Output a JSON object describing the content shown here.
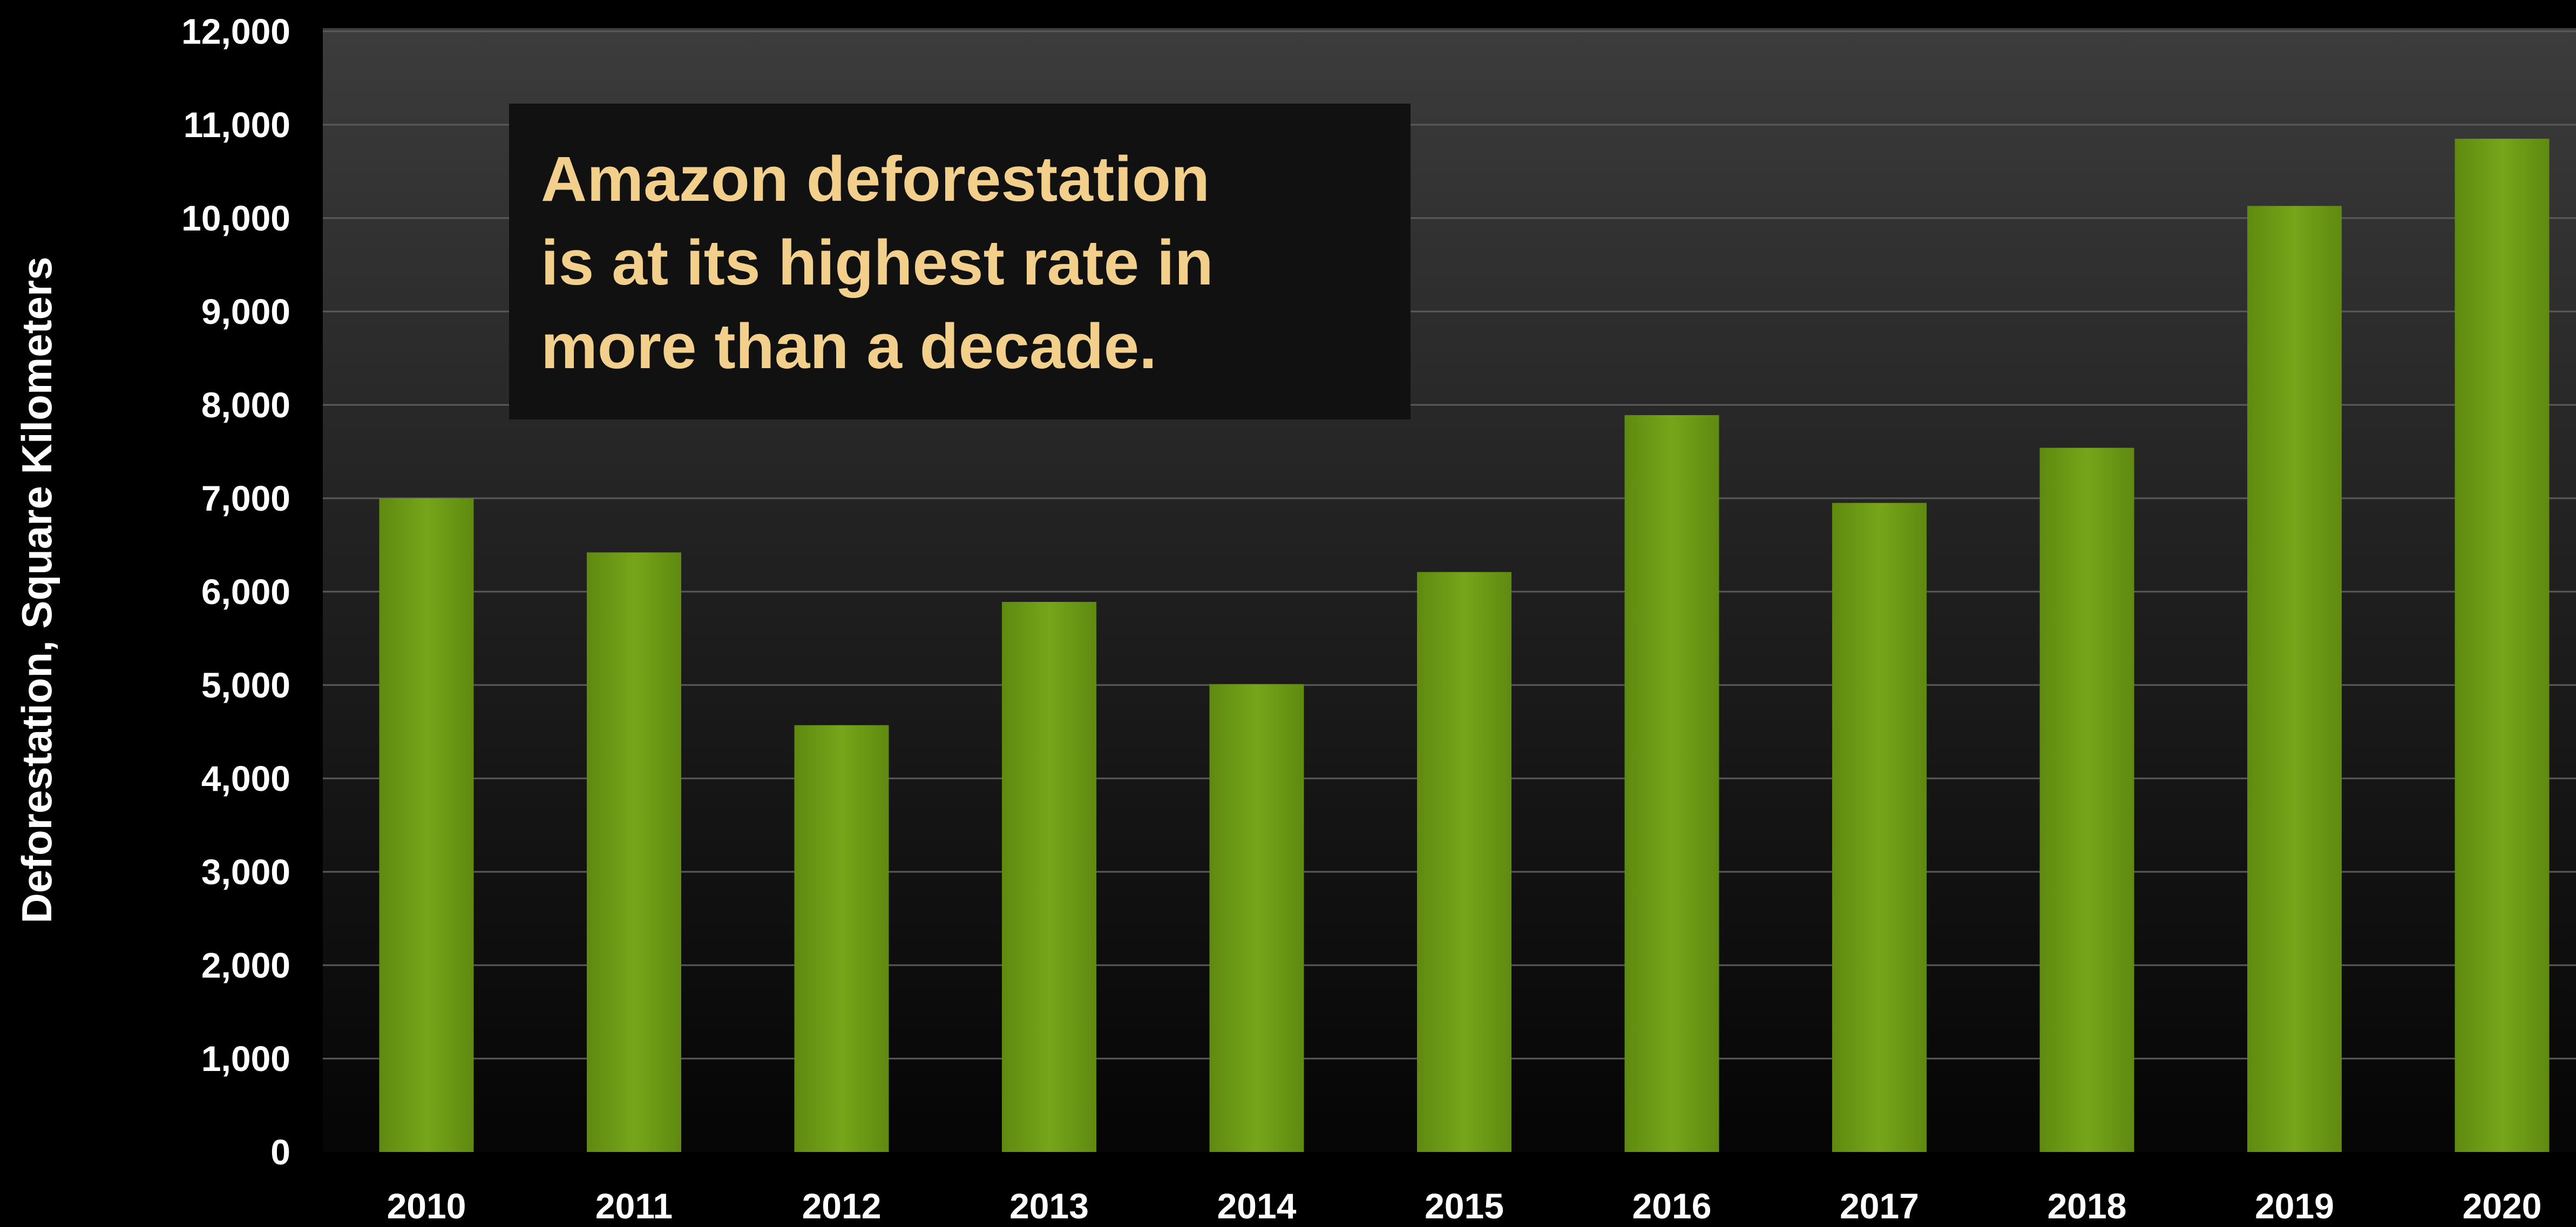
{
  "chart_data": {
    "type": "bar",
    "title": "",
    "xlabel": "",
    "ylabel": "Deforestation, Square Kilometers",
    "categories": [
      "2010",
      "2011",
      "2012",
      "2013",
      "2014",
      "2015",
      "2016",
      "2017",
      "2018",
      "2019",
      "2020"
    ],
    "values": [
      7000,
      6420,
      4570,
      5890,
      5010,
      6210,
      7890,
      6950,
      7540,
      10130,
      10850
    ],
    "ylim": [
      0,
      12000
    ],
    "yticks": [
      "0",
      "1,000",
      "2,000",
      "3,000",
      "4,000",
      "5,000",
      "6,000",
      "7,000",
      "8,000",
      "9,000",
      "10,000",
      "11,000",
      "12,000"
    ],
    "grid": true,
    "legend": "none",
    "annotation": {
      "lines": [
        "Amazon deforestation",
        "is at its highest rate in",
        "more than a decade."
      ]
    },
    "colors": {
      "bar": "#6f9a14",
      "background": "#000000",
      "text": "#ffffff",
      "annotation_text": "#f2cf8a",
      "annotation_box": "#111111"
    }
  }
}
